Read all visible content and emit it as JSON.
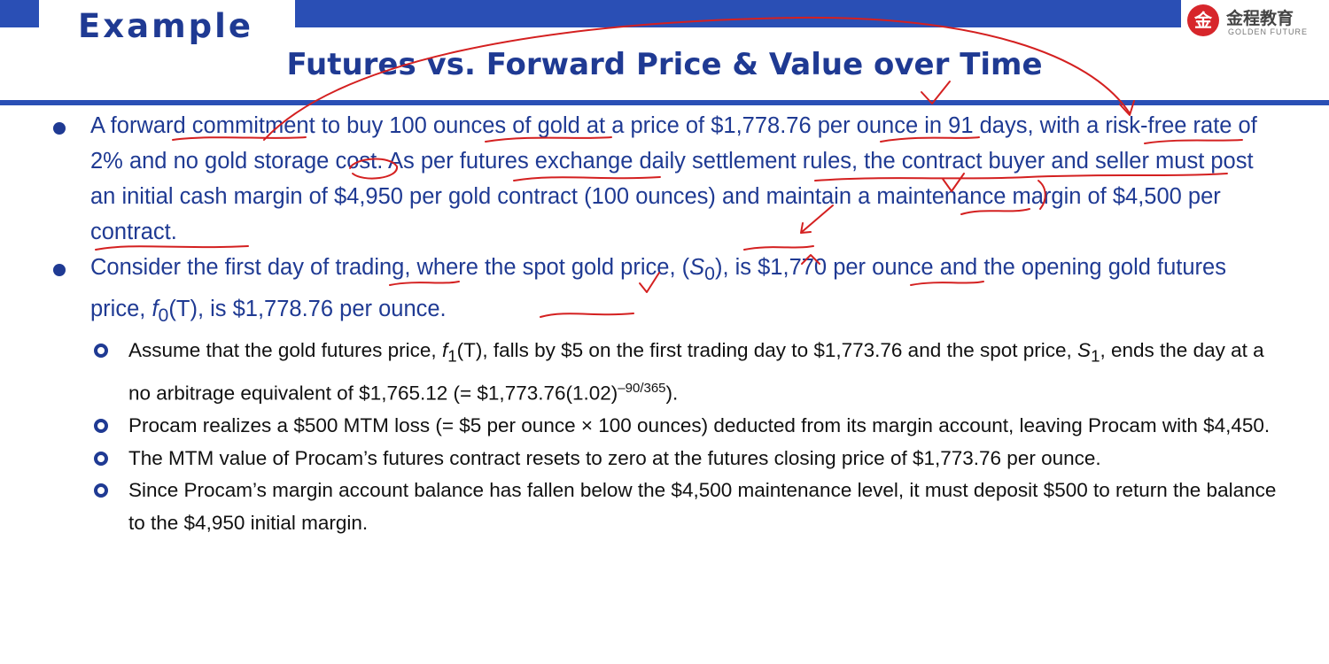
{
  "header": {
    "kicker": "Example",
    "title": "Futures vs. Forward Price & Value over Time",
    "logo": {
      "cn": "金程教育",
      "en": "GOLDEN FUTURE",
      "seal": "金"
    }
  },
  "bullets": [
    {
      "text": "A forward commitment to buy 100 ounces of gold at a price of $1,778.76 per ounce in 91 days, with a risk-free rate of 2% and no gold storage cost. As per futures exchange daily settlement rules, the contract buyer and seller must post an initial cash margin of $4,950 per gold contract (100 ounces) and maintain a maintenance margin of $4,500 per contract."
    },
    {
      "p1": "Consider the first day of trading, where the spot gold price, (",
      "s0_var": "S",
      "s0_sub": "0",
      "p2": "), is $1,770 per ounce and the opening gold futures price, ",
      "f0_var": "f",
      "f0_sub": "0",
      "f0_arg": "(T)",
      "p3": ", is $1,778.76 per ounce.",
      "sub": [
        {
          "p1": "Assume that the gold futures price, ",
          "f1_var": "f",
          "f1_sub": "1",
          "f1_arg": "(T)",
          "p2": ", falls by $5 on the first trading day to $1,773.76 and the spot price, ",
          "s1_var": "S",
          "s1_sub": "1",
          "p3": ", ends the day at a no arbitrage equivalent of $1,765.12 (= $1,773.76(1.02)",
          "exp": "–90/365",
          "p4": ")."
        },
        {
          "text": "Procam realizes a $500 MTM loss (= $5 per ounce × 100 ounces) deducted from its margin account, leaving Procam with $4,450."
        },
        {
          "text": "The MTM value of Procam’s futures contract resets to zero at the futures closing price of $1,773.76 per ounce."
        },
        {
          "text": "Since Procam’s margin account balance has fallen below the $4,500 maintenance level, it must deposit $500 to return the balance to the $4,950 initial margin."
        }
      ]
    }
  ],
  "colors": {
    "accent": "#2a4fb5",
    "text_blue": "#1f3a93",
    "ink": "#d42020"
  }
}
